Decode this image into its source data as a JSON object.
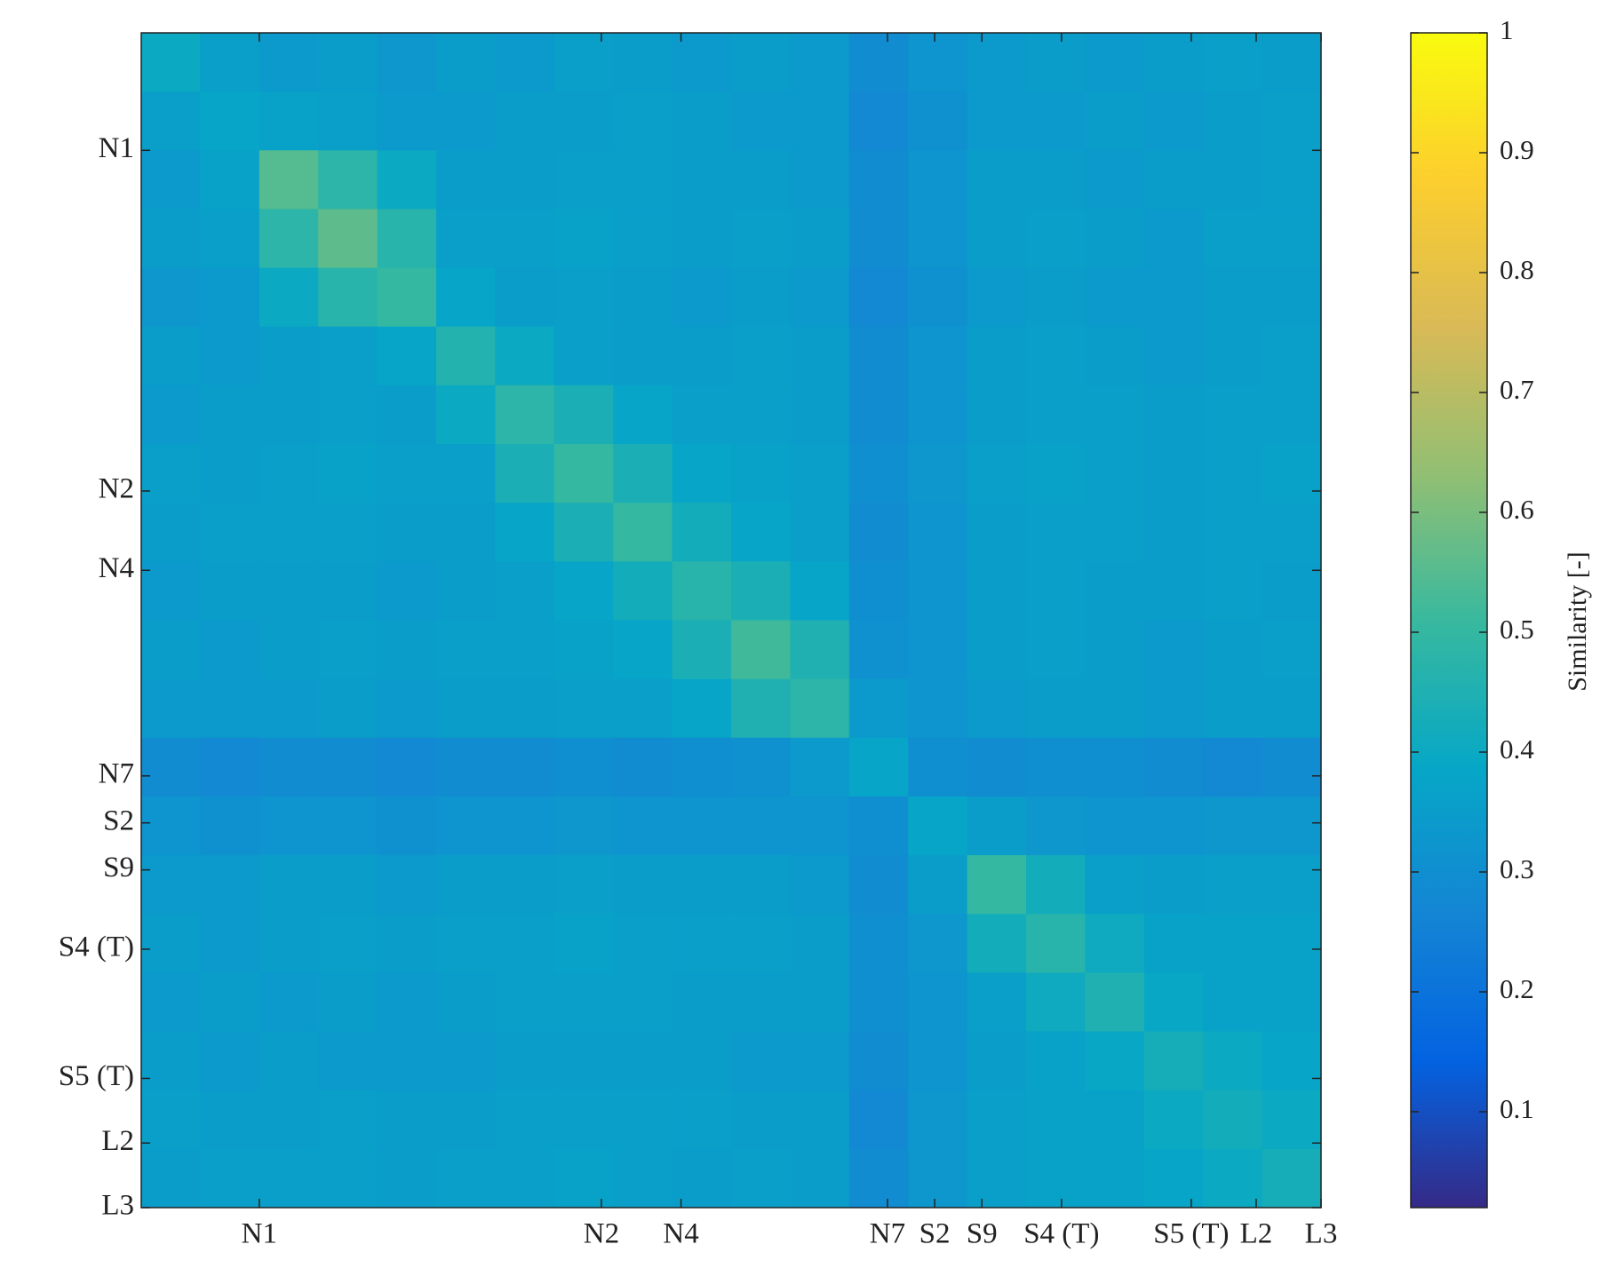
{
  "chart_data": {
    "type": "heatmap",
    "xbins": [
      0,
      20,
      40,
      60,
      80,
      100,
      120,
      140,
      160,
      180,
      200,
      220,
      240,
      260,
      280,
      300,
      320,
      340,
      360,
      380,
      400
    ],
    "ybins": [
      0,
      20,
      40,
      60,
      80,
      100,
      120,
      140,
      160,
      180,
      200,
      220,
      240,
      260,
      280,
      300,
      320,
      340,
      360,
      380,
      400
    ],
    "xlim": [
      0,
      400
    ],
    "ylim": [
      400,
      0
    ],
    "xticks": [
      {
        "value": 40,
        "label": "N1"
      },
      {
        "value": 156,
        "label": "N2"
      },
      {
        "value": 183,
        "label": "N4"
      },
      {
        "value": 253,
        "label": "N7"
      },
      {
        "value": 269,
        "label": "S2"
      },
      {
        "value": 285,
        "label": "S9"
      },
      {
        "value": 312,
        "label": "S4 (T)"
      },
      {
        "value": 356,
        "label": "S5 (T)"
      },
      {
        "value": 378,
        "label": "L2"
      },
      {
        "value": 400,
        "label": "L3"
      }
    ],
    "yticks": [
      {
        "value": 40,
        "label": "N1"
      },
      {
        "value": 156,
        "label": "N2"
      },
      {
        "value": 183,
        "label": "N4"
      },
      {
        "value": 253,
        "label": "N7"
      },
      {
        "value": 269,
        "label": "S2"
      },
      {
        "value": 285,
        "label": "S9"
      },
      {
        "value": 312,
        "label": "S4 (T)"
      },
      {
        "value": 356,
        "label": "S5 (T)"
      },
      {
        "value": 378,
        "label": "L2"
      },
      {
        "value": 400,
        "label": "L3"
      }
    ],
    "values": [
      [
        0.4,
        0.36,
        0.34,
        0.35,
        0.33,
        0.35,
        0.34,
        0.36,
        0.35,
        0.34,
        0.35,
        0.34,
        0.29,
        0.32,
        0.34,
        0.35,
        0.34,
        0.35,
        0.36,
        0.35
      ],
      [
        0.36,
        0.38,
        0.37,
        0.36,
        0.34,
        0.34,
        0.35,
        0.35,
        0.36,
        0.35,
        0.34,
        0.34,
        0.28,
        0.31,
        0.34,
        0.34,
        0.35,
        0.34,
        0.35,
        0.36
      ],
      [
        0.34,
        0.37,
        0.55,
        0.48,
        0.4,
        0.35,
        0.35,
        0.36,
        0.36,
        0.35,
        0.35,
        0.34,
        0.29,
        0.32,
        0.35,
        0.35,
        0.34,
        0.35,
        0.35,
        0.36
      ],
      [
        0.35,
        0.36,
        0.48,
        0.56,
        0.47,
        0.36,
        0.36,
        0.37,
        0.36,
        0.35,
        0.36,
        0.35,
        0.29,
        0.32,
        0.35,
        0.36,
        0.35,
        0.34,
        0.36,
        0.36
      ],
      [
        0.33,
        0.34,
        0.4,
        0.47,
        0.5,
        0.38,
        0.35,
        0.36,
        0.35,
        0.34,
        0.35,
        0.34,
        0.28,
        0.31,
        0.34,
        0.35,
        0.34,
        0.34,
        0.35,
        0.35
      ],
      [
        0.35,
        0.34,
        0.35,
        0.36,
        0.38,
        0.46,
        0.4,
        0.36,
        0.35,
        0.35,
        0.36,
        0.35,
        0.29,
        0.32,
        0.35,
        0.36,
        0.35,
        0.34,
        0.35,
        0.36
      ],
      [
        0.34,
        0.35,
        0.35,
        0.36,
        0.35,
        0.4,
        0.48,
        0.44,
        0.38,
        0.36,
        0.36,
        0.35,
        0.29,
        0.32,
        0.35,
        0.36,
        0.36,
        0.35,
        0.36,
        0.36
      ],
      [
        0.36,
        0.35,
        0.36,
        0.37,
        0.36,
        0.36,
        0.44,
        0.5,
        0.44,
        0.38,
        0.37,
        0.36,
        0.3,
        0.33,
        0.36,
        0.37,
        0.36,
        0.35,
        0.36,
        0.37
      ],
      [
        0.35,
        0.36,
        0.36,
        0.36,
        0.35,
        0.35,
        0.38,
        0.44,
        0.5,
        0.42,
        0.38,
        0.36,
        0.29,
        0.32,
        0.35,
        0.36,
        0.36,
        0.35,
        0.36,
        0.36
      ],
      [
        0.34,
        0.35,
        0.35,
        0.35,
        0.34,
        0.35,
        0.36,
        0.38,
        0.42,
        0.47,
        0.44,
        0.38,
        0.3,
        0.32,
        0.35,
        0.36,
        0.35,
        0.35,
        0.36,
        0.35
      ],
      [
        0.35,
        0.34,
        0.35,
        0.36,
        0.35,
        0.36,
        0.36,
        0.37,
        0.38,
        0.44,
        0.52,
        0.45,
        0.31,
        0.32,
        0.35,
        0.36,
        0.35,
        0.34,
        0.35,
        0.36
      ],
      [
        0.34,
        0.34,
        0.34,
        0.35,
        0.34,
        0.35,
        0.35,
        0.36,
        0.36,
        0.38,
        0.45,
        0.48,
        0.34,
        0.32,
        0.34,
        0.35,
        0.35,
        0.34,
        0.35,
        0.35
      ],
      [
        0.29,
        0.28,
        0.29,
        0.29,
        0.28,
        0.29,
        0.29,
        0.3,
        0.29,
        0.3,
        0.31,
        0.34,
        0.38,
        0.3,
        0.29,
        0.3,
        0.3,
        0.29,
        0.28,
        0.29
      ],
      [
        0.32,
        0.31,
        0.32,
        0.32,
        0.31,
        0.32,
        0.32,
        0.33,
        0.32,
        0.32,
        0.32,
        0.32,
        0.3,
        0.38,
        0.35,
        0.33,
        0.32,
        0.32,
        0.33,
        0.33
      ],
      [
        0.34,
        0.34,
        0.35,
        0.35,
        0.34,
        0.35,
        0.35,
        0.36,
        0.35,
        0.35,
        0.35,
        0.34,
        0.29,
        0.35,
        0.5,
        0.42,
        0.36,
        0.35,
        0.36,
        0.36
      ],
      [
        0.35,
        0.34,
        0.35,
        0.36,
        0.35,
        0.36,
        0.36,
        0.37,
        0.36,
        0.36,
        0.36,
        0.35,
        0.3,
        0.33,
        0.42,
        0.47,
        0.41,
        0.37,
        0.37,
        0.37
      ],
      [
        0.34,
        0.35,
        0.34,
        0.35,
        0.34,
        0.35,
        0.36,
        0.36,
        0.36,
        0.35,
        0.35,
        0.35,
        0.3,
        0.32,
        0.36,
        0.41,
        0.45,
        0.39,
        0.37,
        0.37
      ],
      [
        0.35,
        0.34,
        0.35,
        0.34,
        0.34,
        0.34,
        0.35,
        0.35,
        0.35,
        0.35,
        0.34,
        0.34,
        0.29,
        0.32,
        0.35,
        0.37,
        0.39,
        0.43,
        0.4,
        0.38
      ],
      [
        0.36,
        0.35,
        0.35,
        0.36,
        0.35,
        0.35,
        0.36,
        0.36,
        0.36,
        0.36,
        0.35,
        0.35,
        0.28,
        0.33,
        0.36,
        0.37,
        0.37,
        0.4,
        0.42,
        0.4
      ],
      [
        0.35,
        0.36,
        0.36,
        0.36,
        0.35,
        0.36,
        0.36,
        0.37,
        0.36,
        0.35,
        0.36,
        0.35,
        0.29,
        0.33,
        0.36,
        0.37,
        0.37,
        0.38,
        0.4,
        0.43
      ]
    ],
    "colormap": [
      "#352a87",
      "#0363e1",
      "#1485d4",
      "#06a7c6",
      "#38b99e",
      "#92bf73",
      "#d9ba56",
      "#fcce2e",
      "#f9fb0e"
    ],
    "colorbar": {
      "label": "Similarity [-]",
      "lim": [
        0.02,
        1
      ],
      "ticks": [
        0.1,
        0.2,
        0.3,
        0.4,
        0.5,
        0.6,
        0.7,
        0.8,
        0.9,
        1
      ]
    }
  }
}
